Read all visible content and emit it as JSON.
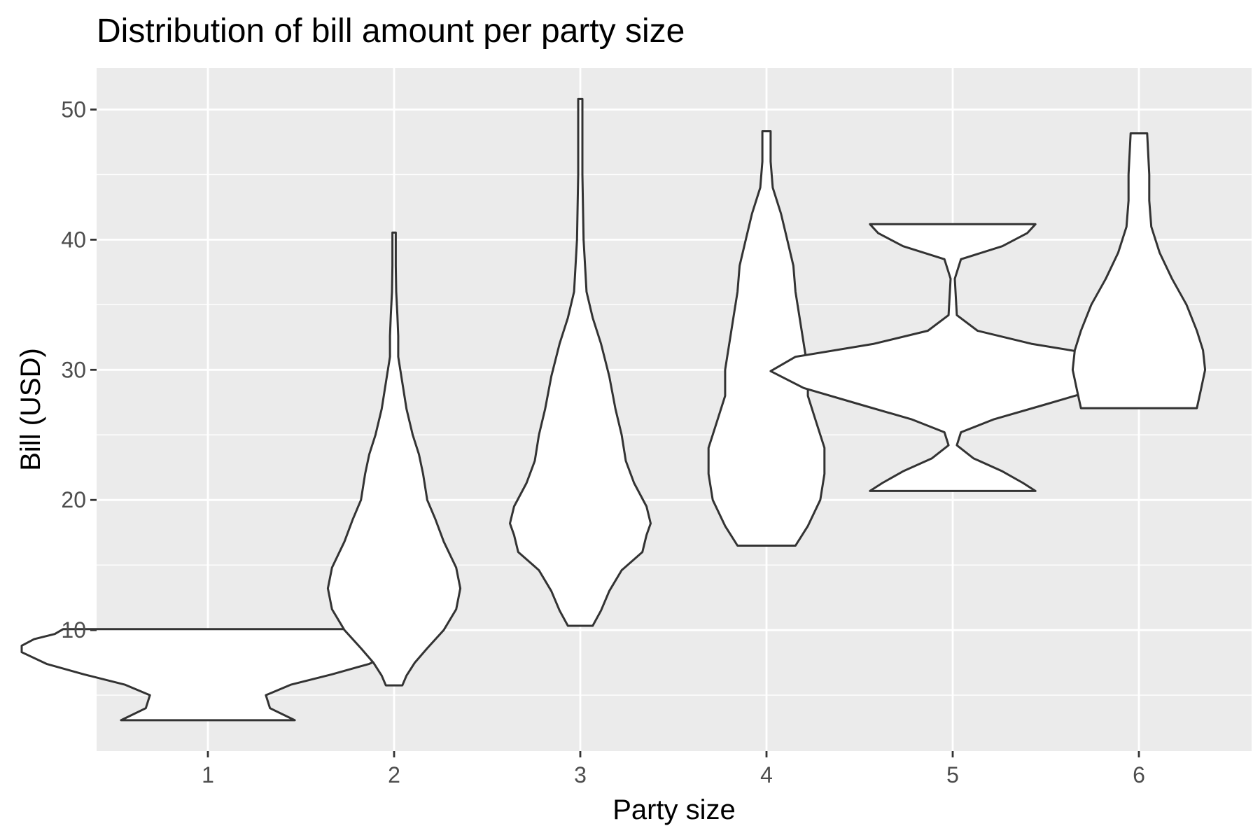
{
  "chart_data": {
    "type": "violin",
    "title": "Distribution of bill amount per party size",
    "xlabel": "Party size",
    "ylabel": "Bill (USD)",
    "categories": [
      "1",
      "2",
      "3",
      "4",
      "5",
      "6"
    ],
    "y_ticks": [
      10,
      20,
      30,
      40,
      50
    ],
    "ylim": [
      0.7,
      53.2
    ],
    "grid": true,
    "background": "#ebebeb",
    "grid_color": "#ffffff",
    "violin_fill": "#ffffff",
    "violin_stroke": "#333333",
    "violins": [
      {
        "category": "1",
        "min": 3.07,
        "max": 10.07,
        "profile": [
          [
            3.07,
            0.21
          ],
          [
            4.0,
            0.15
          ],
          [
            5.0,
            0.14
          ],
          [
            5.8,
            0.2
          ],
          [
            6.6,
            0.3
          ],
          [
            7.4,
            0.39
          ],
          [
            8.3,
            0.45
          ],
          [
            8.8,
            0.45
          ],
          [
            9.3,
            0.42
          ],
          [
            9.7,
            0.37
          ],
          [
            10.07,
            0.35
          ]
        ]
      },
      {
        "category": "2",
        "min": 5.75,
        "max": 40.55,
        "profile": [
          [
            5.75,
            0.02
          ],
          [
            6.5,
            0.03
          ],
          [
            7.5,
            0.05
          ],
          [
            8.6,
            0.08
          ],
          [
            10.0,
            0.12
          ],
          [
            11.6,
            0.15
          ],
          [
            13.2,
            0.16
          ],
          [
            14.8,
            0.15
          ],
          [
            16.8,
            0.12
          ],
          [
            18.5,
            0.1
          ],
          [
            20.0,
            0.08
          ],
          [
            22.0,
            0.07
          ],
          [
            23.5,
            0.06
          ],
          [
            25.0,
            0.045
          ],
          [
            27.0,
            0.03
          ],
          [
            29.0,
            0.02
          ],
          [
            31.0,
            0.01
          ],
          [
            32.6,
            0.01
          ],
          [
            34.2,
            0.008
          ],
          [
            36.0,
            0.005
          ],
          [
            38.0,
            0.004
          ],
          [
            40.55,
            0.004
          ]
        ]
      },
      {
        "category": "3",
        "min": 10.33,
        "max": 50.81,
        "profile": [
          [
            10.33,
            0.03
          ],
          [
            11.5,
            0.05
          ],
          [
            13.0,
            0.07
          ],
          [
            14.6,
            0.1
          ],
          [
            16.0,
            0.15
          ],
          [
            17.3,
            0.16
          ],
          [
            18.2,
            0.17
          ],
          [
            19.5,
            0.16
          ],
          [
            21.3,
            0.13
          ],
          [
            23.0,
            0.11
          ],
          [
            25.0,
            0.1
          ],
          [
            27.0,
            0.085
          ],
          [
            29.5,
            0.07
          ],
          [
            32.0,
            0.05
          ],
          [
            34.0,
            0.03
          ],
          [
            36.0,
            0.015
          ],
          [
            40.0,
            0.008
          ],
          [
            45.0,
            0.005
          ],
          [
            50.81,
            0.005
          ]
        ]
      },
      {
        "category": "4",
        "min": 16.49,
        "max": 48.33,
        "profile": [
          [
            16.49,
            0.07
          ],
          [
            18.0,
            0.1
          ],
          [
            20.0,
            0.13
          ],
          [
            22.0,
            0.14
          ],
          [
            24.0,
            0.14
          ],
          [
            26.0,
            0.12
          ],
          [
            28.0,
            0.1
          ],
          [
            30.0,
            0.1
          ],
          [
            32.0,
            0.09
          ],
          [
            34.0,
            0.08
          ],
          [
            36.0,
            0.07
          ],
          [
            38.0,
            0.065
          ],
          [
            40.0,
            0.05
          ],
          [
            42.0,
            0.035
          ],
          [
            44.0,
            0.015
          ],
          [
            46.0,
            0.01
          ],
          [
            48.33,
            0.01
          ]
        ]
      },
      {
        "category": "5",
        "min": 20.69,
        "max": 41.19,
        "profile": [
          [
            20.69,
            0.2
          ],
          [
            21.3,
            0.17
          ],
          [
            22.2,
            0.12
          ],
          [
            23.2,
            0.05
          ],
          [
            24.2,
            0.01
          ],
          [
            25.2,
            0.02
          ],
          [
            26.2,
            0.1
          ],
          [
            27.3,
            0.22
          ],
          [
            28.6,
            0.36
          ],
          [
            29.9,
            0.44
          ],
          [
            31.0,
            0.38
          ],
          [
            32.0,
            0.19
          ],
          [
            33.0,
            0.06
          ],
          [
            34.2,
            0.01
          ],
          [
            37.0,
            0.005
          ],
          [
            38.5,
            0.02
          ],
          [
            39.5,
            0.12
          ],
          [
            40.5,
            0.18
          ],
          [
            41.19,
            0.2
          ]
        ]
      },
      {
        "category": "6",
        "min": 27.05,
        "max": 48.17,
        "profile": [
          [
            27.05,
            0.14
          ],
          [
            28.5,
            0.15
          ],
          [
            30.0,
            0.16
          ],
          [
            31.5,
            0.155
          ],
          [
            33.0,
            0.14
          ],
          [
            35.0,
            0.115
          ],
          [
            37.0,
            0.08
          ],
          [
            39.0,
            0.05
          ],
          [
            41.0,
            0.03
          ],
          [
            43.0,
            0.025
          ],
          [
            45.0,
            0.025
          ],
          [
            48.17,
            0.02
          ]
        ]
      }
    ]
  }
}
